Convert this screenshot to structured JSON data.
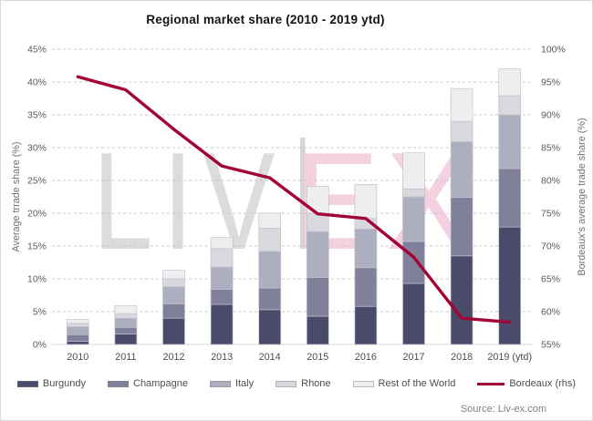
{
  "title": "Regional market share (2010 - 2019 ytd)",
  "source": "Source: Liv-ex.com",
  "watermark": {
    "text_left": "LIV",
    "text_right": "EX",
    "grey_color": "#dcdcdc",
    "pink_color": "#f4d1de",
    "divider_color": "#d5d5dd"
  },
  "colors": {
    "grid": "#c9c9c9",
    "axis_line": "#d9d9d9",
    "segment_border": "#c2c2cb",
    "tick_text": "#595959",
    "title_text": "#141414"
  },
  "chart_data": {
    "type": "bar",
    "stacked": true,
    "grid": "dashed-horizontal",
    "legend_position": "bottom",
    "categories": [
      "2010",
      "2011",
      "2012",
      "2013",
      "2014",
      "2015",
      "2016",
      "2017",
      "2018",
      "2019 (ytd)"
    ],
    "series": [
      {
        "name": "Burgundy",
        "color": "#4a4a6a",
        "values": [
          0.5,
          1.6,
          4.0,
          6.1,
          5.3,
          4.3,
          5.8,
          9.3,
          13.5,
          17.9
        ]
      },
      {
        "name": "Champagne",
        "color": "#80809b",
        "values": [
          1.0,
          1.0,
          2.2,
          2.3,
          3.3,
          5.9,
          5.9,
          6.4,
          8.9,
          8.9
        ]
      },
      {
        "name": "Italy",
        "color": "#aeaec1",
        "values": [
          1.2,
          1.4,
          2.6,
          3.4,
          5.6,
          7.0,
          5.9,
          6.8,
          8.5,
          8.2
        ]
      },
      {
        "name": "Rhone",
        "color": "#d8d8df",
        "values": [
          0.5,
          0.7,
          1.2,
          2.8,
          3.5,
          2.8,
          1.6,
          1.2,
          3.1,
          2.9
        ]
      },
      {
        "name": "Rest of the World",
        "color": "#eeeef1",
        "values": [
          0.6,
          1.2,
          1.3,
          1.7,
          2.3,
          4.1,
          5.2,
          5.5,
          5.0,
          4.1
        ]
      }
    ],
    "bar_totals": [
      3.8,
      5.9,
      11.3,
      16.3,
      20.0,
      24.1,
      24.4,
      29.2,
      39.0,
      42.0
    ],
    "line_series": {
      "name": "Bordeaux (rhs)",
      "color": "#a30237",
      "axis": "right",
      "values": [
        95.8,
        93.8,
        87.8,
        82.2,
        80.4,
        74.9,
        74.2,
        68.3,
        59.0,
        58.4
      ]
    },
    "left_axis": {
      "label": "Average trrade share (%)",
      "min": 0,
      "max": 45,
      "step": 5,
      "ticks": [
        "0%",
        "5%",
        "10%",
        "15%",
        "20%",
        "25%",
        "30%",
        "35%",
        "40%",
        "45%"
      ]
    },
    "right_axis": {
      "label": "Bordeaux's average trade share (%)",
      "min": 55,
      "max": 100,
      "step": 5,
      "ticks": [
        "55%",
        "60%",
        "65%",
        "70%",
        "75%",
        "80%",
        "85%",
        "90%",
        "95%",
        "100%"
      ]
    }
  }
}
